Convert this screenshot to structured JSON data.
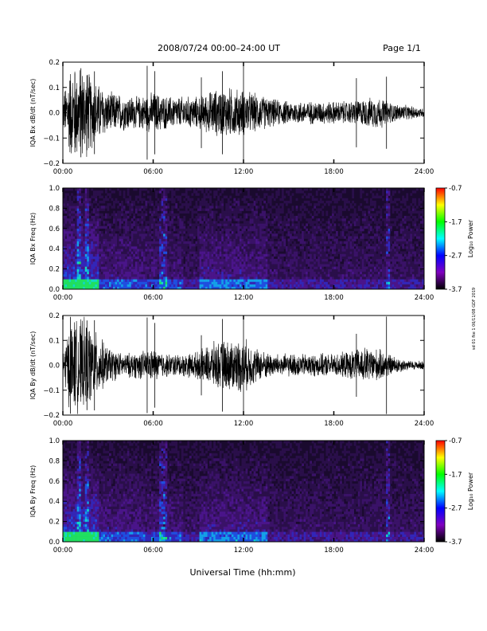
{
  "header": {
    "title": "2008/07/24  00:00–24:00 UT",
    "page": "Page 1/1"
  },
  "footer": {
    "xlabel": "Universal Time (hh:mm)"
  },
  "side_note": "sd 01 fke 1 06/11/08 GDF 2019",
  "colorbar": {
    "label": "Log₁₀ Power",
    "ticks": [
      "-0.7",
      "-1.7",
      "-2.7",
      "-3.7"
    ],
    "stops": [
      "#ff0000",
      "#ffff00",
      "#00ff00",
      "#00ffff",
      "#0000ff",
      "#8000c0",
      "#000000"
    ]
  },
  "chart_data": [
    {
      "type": "line",
      "ylabel": "IQA Bx dB/dt (nT/sec)",
      "xlim": [
        0,
        24
      ],
      "ylim": [
        -0.2,
        0.2
      ],
      "xticks": [
        "00:00",
        "06:00",
        "12:00",
        "18:00",
        "24:00"
      ],
      "yticks": [
        "0.2",
        "0.1",
        "0.0",
        "−0.1",
        "−0.2"
      ],
      "envelope": {
        "hours": [
          0,
          0.5,
          1,
          1.5,
          2,
          3,
          4,
          5,
          6,
          7,
          8,
          9,
          10,
          11,
          12,
          13,
          14,
          15,
          16,
          17,
          18,
          19,
          20,
          21,
          22,
          23,
          24
        ],
        "amplitude": [
          0.07,
          0.2,
          0.2,
          0.2,
          0.15,
          0.09,
          0.08,
          0.07,
          0.09,
          0.07,
          0.07,
          0.07,
          0.1,
          0.11,
          0.1,
          0.08,
          0.06,
          0.05,
          0.05,
          0.05,
          0.05,
          0.05,
          0.06,
          0.07,
          0.04,
          0.03,
          0.02
        ]
      },
      "color": "#000000"
    },
    {
      "type": "heatmap",
      "ylabel": "IQA Bx Freq (Hz)",
      "xlim": [
        0,
        24
      ],
      "ylim": [
        0,
        1.0
      ],
      "xticks": [
        "00:00",
        "06:00",
        "12:00",
        "18:00",
        "24:00"
      ],
      "yticks": [
        "1.0",
        "0.8",
        "0.6",
        "0.4",
        "0.2",
        "0.0"
      ],
      "zlim": [
        -3.7,
        -0.7
      ],
      "bursts": [
        1.0,
        1.5,
        6.5,
        6.7,
        21.5
      ]
    },
    {
      "type": "line",
      "ylabel": "IQA By dB/dt (nT/sec)",
      "xlim": [
        0,
        24
      ],
      "ylim": [
        -0.2,
        0.2
      ],
      "xticks": [
        "00:00",
        "06:00",
        "12:00",
        "18:00",
        "24:00"
      ],
      "yticks": [
        "0.2",
        "0.1",
        "0.0",
        "−0.1",
        "−0.2"
      ],
      "envelope": {
        "hours": [
          0,
          0.5,
          1,
          1.5,
          2,
          3,
          4,
          5,
          6,
          7,
          8,
          9,
          10,
          11,
          12,
          13,
          14,
          15,
          16,
          17,
          18,
          19,
          20,
          21,
          22,
          23,
          24
        ],
        "amplitude": [
          0.06,
          0.2,
          0.2,
          0.2,
          0.16,
          0.08,
          0.05,
          0.06,
          0.07,
          0.05,
          0.05,
          0.06,
          0.1,
          0.11,
          0.12,
          0.07,
          0.05,
          0.05,
          0.05,
          0.05,
          0.05,
          0.06,
          0.08,
          0.07,
          0.04,
          0.02,
          0.02
        ]
      },
      "color": "#000000"
    },
    {
      "type": "heatmap",
      "ylabel": "IQA By Freq (Hz)",
      "xlim": [
        0,
        24
      ],
      "ylim": [
        0,
        1.0
      ],
      "xticks": [
        "00:00",
        "06:00",
        "12:00",
        "18:00",
        "24:00"
      ],
      "yticks": [
        "1.0",
        "0.8",
        "0.6",
        "0.4",
        "0.2",
        "0.0"
      ],
      "zlim": [
        -3.7,
        -0.7
      ],
      "bursts": [
        1.0,
        1.5,
        6.5,
        6.7,
        21.5
      ]
    }
  ]
}
